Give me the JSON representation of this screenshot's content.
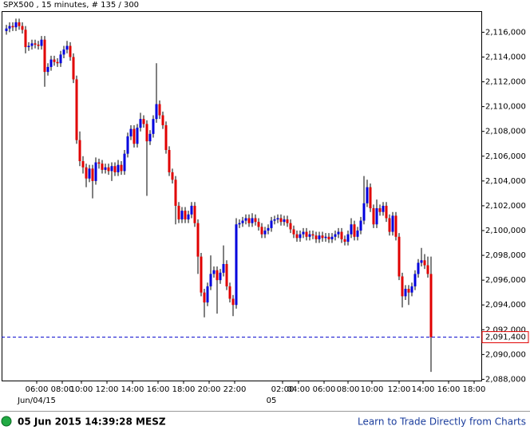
{
  "chart_data": {
    "type": "candlestick",
    "title": "SPX500 , 15 minutes, # 135 / 300",
    "up_color": "#0000dd",
    "down_color": "#e00000",
    "wick_color": "#000000",
    "xlim": [
      -1.5,
      148.75
    ],
    "ylim": [
      2087.9,
      2117.7
    ],
    "yticks": [
      {
        "value": 2088,
        "label": "2,088,000"
      },
      {
        "value": 2090,
        "label": "2,090,000"
      },
      {
        "value": 2092,
        "label": "2,092,000"
      },
      {
        "value": 2094,
        "label": "2,094,000"
      },
      {
        "value": 2096,
        "label": "2,096,000"
      },
      {
        "value": 2098,
        "label": "2,098,000"
      },
      {
        "value": 2100,
        "label": "2,100,000"
      },
      {
        "value": 2102,
        "label": "2,102,000"
      },
      {
        "value": 2104,
        "label": "2,104,000"
      },
      {
        "value": 2106,
        "label": "2,106,000"
      },
      {
        "value": 2108,
        "label": "2,108,000"
      },
      {
        "value": 2110,
        "label": "2,110,000"
      },
      {
        "value": 2112,
        "label": "2,112,000"
      },
      {
        "value": 2114,
        "label": "2,114,000"
      },
      {
        "value": 2116,
        "label": "2,116,000"
      }
    ],
    "xticks": [
      {
        "value": 9.5,
        "label": "06:00"
      },
      {
        "value": 17.5,
        "label": "08:00"
      },
      {
        "value": 23.5,
        "label": "10:00"
      },
      {
        "value": 31.5,
        "label": "12:00"
      },
      {
        "value": 39.5,
        "label": "14:00"
      },
      {
        "value": 47.5,
        "label": "16:00"
      },
      {
        "value": 55.5,
        "label": "18:00"
      },
      {
        "value": 63.5,
        "label": "20:00"
      },
      {
        "value": 71.5,
        "label": "22:00"
      },
      {
        "value": 86.5,
        "label": "02:00"
      },
      {
        "value": 91.5,
        "label": "04:00"
      },
      {
        "value": 99.5,
        "label": "06:00"
      },
      {
        "value": 107,
        "label": "08:00"
      },
      {
        "value": 114.5,
        "label": "10:00"
      },
      {
        "value": 123,
        "label": "12:00"
      },
      {
        "value": 130.5,
        "label": "14:00"
      },
      {
        "value": 138.5,
        "label": "16:00"
      },
      {
        "value": 146.5,
        "label": "18:00"
      }
    ],
    "date_labels": [
      {
        "value": 9.5,
        "label": "Jun/04/15"
      },
      {
        "value": 83,
        "label": "05"
      }
    ],
    "last_price": {
      "value": 2091.4,
      "label": "2,091,400",
      "color": "#0000cc"
    },
    "open": [
      2116.1,
      2116.3,
      2116.5,
      2116.4,
      2116.8,
      2116.5,
      2116.2,
      2114.8,
      2114.9,
      2115.1,
      2115.0,
      2114.9,
      2115.4,
      2112.8,
      2113.2,
      2113.8,
      2113.6,
      2113.5,
      2114.2,
      2114.6,
      2114.9,
      2114.0,
      2112.2,
      2107.3,
      2105.6,
      2105.1,
      2104.2,
      2105.0,
      2104.0,
      2105.5,
      2105.4,
      2104.9,
      2105.1,
      2104.8,
      2105.2,
      2104.7,
      2105.3,
      2104.8,
      2106.2,
      2107.6,
      2108.2,
      2107.0,
      2108.3,
      2109.0,
      2108.6,
      2107.2,
      2107.8,
      2109.0,
      2110.2,
      2109.3,
      2108.5,
      2106.5,
      2104.7,
      2104.1,
      2102.0,
      2100.9,
      2101.6,
      2100.9,
      2101.3,
      2102.0,
      2100.6,
      2097.9,
      2095.0,
      2094.2,
      2095.5,
      2096.5,
      2096.8,
      2096.0,
      2096.6,
      2097.3,
      2095.5,
      2094.5,
      2094.0,
      2100.5,
      2100.6,
      2100.8,
      2101.0,
      2100.6,
      2101.0,
      2100.7,
      2100.3,
      2099.7,
      2100.0,
      2100.2,
      2100.8,
      2100.9,
      2101.0,
      2100.7,
      2100.9,
      2100.6,
      2100.1,
      2099.7,
      2099.4,
      2099.7,
      2099.9,
      2099.5,
      2099.7,
      2099.6,
      2099.3,
      2099.6,
      2099.4,
      2099.5,
      2099.3,
      2099.5,
      2099.7,
      2099.9,
      2099.3,
      2099.1,
      2099.7,
      2100.5,
      2099.5,
      2100.0,
      2100.8,
      2102.2,
      2103.5,
      2101.8,
      2100.5,
      2101.8,
      2101.5,
      2102.0,
      2101.0,
      2099.9,
      2101.2,
      2099.5,
      2096.3,
      2094.7,
      2095.3,
      2095.0,
      2095.5,
      2096.5,
      2097.4,
      2097.6,
      2097.2,
      2096.5
    ],
    "high": [
      2116.6,
      2116.8,
      2116.8,
      2117.1,
      2117.1,
      2116.8,
      2116.5,
      2115.2,
      2115.4,
      2115.4,
      2115.3,
      2115.7,
      2115.7,
      2113.5,
      2114.1,
      2114.1,
      2113.9,
      2114.5,
      2114.9,
      2115.3,
      2115.2,
      2114.3,
      2112.5,
      2108.0,
      2106.0,
      2105.4,
      2105.3,
      2105.3,
      2105.9,
      2105.8,
      2105.7,
      2105.4,
      2105.4,
      2105.5,
      2105.5,
      2105.7,
      2105.6,
      2106.5,
      2107.9,
      2108.5,
      2108.5,
      2108.6,
      2109.5,
      2109.3,
      2108.9,
      2108.1,
      2109.3,
      2113.5,
      2110.5,
      2109.6,
      2108.8,
      2106.8,
      2105.0,
      2104.4,
      2102.3,
      2101.9,
      2101.9,
      2101.6,
      2102.3,
      2102.3,
      2100.9,
      2098.2,
      2095.3,
      2095.8,
      2098.0,
      2097.1,
      2097.1,
      2096.9,
      2098.8,
      2097.6,
      2095.8,
      2094.8,
      2101.0,
      2100.9,
      2101.1,
      2101.3,
      2101.3,
      2101.4,
      2101.3,
      2101.0,
      2100.6,
      2100.3,
      2100.5,
      2101.1,
      2101.2,
      2101.3,
      2101.3,
      2101.2,
      2101.2,
      2100.9,
      2100.4,
      2100.0,
      2100.0,
      2100.2,
      2100.2,
      2100.0,
      2100.0,
      2099.9,
      2099.9,
      2099.9,
      2099.8,
      2099.8,
      2099.8,
      2100.0,
      2100.2,
      2100.2,
      2099.6,
      2100.0,
      2101.0,
      2100.8,
      2100.3,
      2101.1,
      2104.4,
      2104.1,
      2103.8,
      2102.1,
      2102.5,
      2102.1,
      2102.3,
      2102.3,
      2101.3,
      2101.5,
      2101.5,
      2099.8,
      2096.6,
      2095.6,
      2095.6,
      2095.8,
      2096.8,
      2097.7,
      2098.6,
      2098.1,
      2097.9,
      2097.9
    ],
    "low": [
      2115.8,
      2116.0,
      2116.1,
      2116.1,
      2116.2,
      2115.9,
      2114.3,
      2114.5,
      2114.6,
      2114.7,
      2114.6,
      2114.6,
      2111.6,
      2112.5,
      2112.9,
      2113.3,
      2113.2,
      2113.2,
      2113.9,
      2114.3,
      2113.7,
      2111.9,
      2107.0,
      2105.2,
      2104.6,
      2103.5,
      2103.9,
      2102.6,
      2103.7,
      2105.0,
      2104.6,
      2104.6,
      2104.5,
      2104.0,
      2104.4,
      2104.4,
      2104.5,
      2104.5,
      2105.9,
      2107.3,
      2106.7,
      2106.7,
      2108.0,
      2108.3,
      2102.8,
      2106.9,
      2107.5,
      2108.7,
      2109.0,
      2108.2,
      2106.2,
      2104.4,
      2103.8,
      2100.5,
      2100.6,
      2100.6,
      2100.6,
      2100.6,
      2101.0,
      2100.3,
      2096.5,
      2094.7,
      2093.0,
      2093.9,
      2095.2,
      2096.2,
      2093.3,
      2095.7,
      2096.3,
      2095.2,
      2094.2,
      2093.1,
      2093.7,
      2100.2,
      2100.3,
      2100.5,
      2100.3,
      2100.3,
      2100.4,
      2100.0,
      2099.4,
      2099.4,
      2099.7,
      2099.9,
      2100.5,
      2100.6,
      2100.4,
      2100.4,
      2100.3,
      2099.8,
      2099.4,
      2099.1,
      2099.1,
      2099.4,
      2099.2,
      2099.2,
      2099.3,
      2099.0,
      2099.0,
      2099.1,
      2099.1,
      2099.0,
      2099.0,
      2099.2,
      2099.4,
      2099.0,
      2098.8,
      2098.8,
      2099.4,
      2099.2,
      2099.2,
      2099.7,
      2100.5,
      2101.9,
      2101.5,
      2100.2,
      2100.2,
      2101.2,
      2101.2,
      2100.7,
      2099.6,
      2099.6,
      2099.2,
      2096.0,
      2093.8,
      2094.4,
      2094.0,
      2094.7,
      2095.2,
      2096.2,
      2097.1,
      2096.9,
      2096.2,
      2088.6
    ],
    "close": [
      2116.3,
      2116.5,
      2116.4,
      2116.8,
      2116.5,
      2116.2,
      2114.8,
      2114.9,
      2115.1,
      2115.0,
      2114.9,
      2115.4,
      2112.8,
      2113.2,
      2113.8,
      2113.6,
      2113.5,
      2114.2,
      2114.6,
      2114.9,
      2114.0,
      2112.2,
      2107.3,
      2105.6,
      2105.1,
      2104.2,
      2105.0,
      2104.0,
      2105.5,
      2105.4,
      2104.9,
      2105.1,
      2104.8,
      2105.2,
      2104.7,
      2105.3,
      2104.8,
      2106.2,
      2107.6,
      2108.2,
      2107.0,
      2108.3,
      2109.0,
      2108.6,
      2107.2,
      2107.8,
      2109.0,
      2110.2,
      2109.3,
      2108.5,
      2106.5,
      2104.7,
      2104.1,
      2102.0,
      2100.9,
      2101.6,
      2100.9,
      2101.3,
      2102.0,
      2100.6,
      2097.9,
      2095.0,
      2094.2,
      2095.5,
      2096.5,
      2096.8,
      2096.0,
      2096.6,
      2097.3,
      2095.5,
      2094.5,
      2094.0,
      2100.5,
      2100.6,
      2100.8,
      2101.0,
      2100.6,
      2101.0,
      2100.7,
      2100.3,
      2099.7,
      2100.0,
      2100.2,
      2100.8,
      2100.9,
      2101.0,
      2100.7,
      2100.9,
      2100.6,
      2100.1,
      2099.7,
      2099.4,
      2099.7,
      2099.9,
      2099.5,
      2099.7,
      2099.6,
      2099.3,
      2099.6,
      2099.4,
      2099.5,
      2099.3,
      2099.5,
      2099.7,
      2099.9,
      2099.3,
      2099.1,
      2099.7,
      2100.5,
      2099.5,
      2100.0,
      2100.8,
      2102.2,
      2103.5,
      2101.8,
      2100.5,
      2101.8,
      2101.5,
      2102.0,
      2101.0,
      2099.9,
      2101.2,
      2099.5,
      2096.3,
      2094.7,
      2095.3,
      2095.0,
      2095.5,
      2096.5,
      2097.4,
      2097.6,
      2097.2,
      2096.5,
      2091.4
    ]
  },
  "footer": {
    "timestamp": "05 Jun 2015 14:39:28 MESZ",
    "link": "Learn to Trade Directly from Charts"
  }
}
